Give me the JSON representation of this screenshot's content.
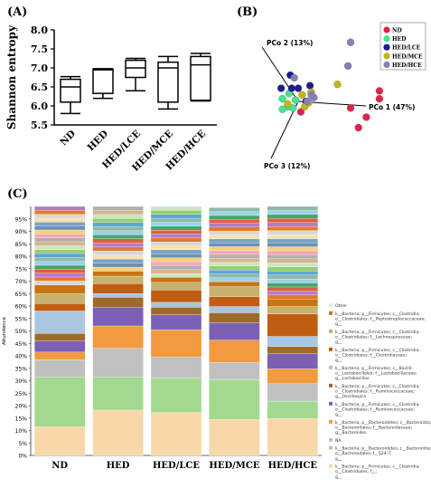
{
  "chart_data": [
    {
      "panel_label": "(A)",
      "type": "box",
      "ylabel": "Shannon entropy",
      "ylim": [
        5.5,
        8.0
      ],
      "yticks": [
        "5.5",
        "6.0",
        "6.5",
        "7.0",
        "7.5",
        "8.0"
      ],
      "categories": [
        "ND",
        "HED",
        "HED/LCE",
        "HED/MCE",
        "HED/HCE"
      ],
      "boxes": [
        {
          "min": 5.8,
          "q1": 6.1,
          "median": 6.5,
          "q3": 6.7,
          "max": 6.77
        },
        {
          "min": 6.2,
          "q1": 6.33,
          "median": 6.95,
          "q3": 6.97,
          "max": 6.98
        },
        {
          "min": 6.4,
          "q1": 6.75,
          "median": 7.0,
          "q3": 7.2,
          "max": 7.25
        },
        {
          "min": 5.92,
          "q1": 6.1,
          "median": 7.0,
          "q3": 7.15,
          "max": 7.3
        },
        {
          "min": 6.13,
          "q1": 6.15,
          "median": 7.08,
          "q3": 7.3,
          "max": 7.38
        }
      ]
    },
    {
      "panel_label": "(B)",
      "type": "scatter",
      "axes": [
        "PCo 1 (47%)",
        "PCo 2 (13%)",
        "PCo 3 (12%)"
      ],
      "legend_position": "top-right",
      "series": [
        {
          "name": "ND",
          "color": "#e0234d",
          "points": [
            [
              0.62,
              0.08
            ],
            [
              0.62,
              0.02
            ],
            [
              0.52,
              -0.12
            ],
            [
              0.4,
              -0.05
            ],
            [
              0.46,
              -0.2
            ],
            [
              0.02,
              -0.08
            ]
          ]
        },
        {
          "name": "HED",
          "color": "#43e58e",
          "points": [
            [
              -0.12,
              0.02
            ],
            [
              -0.08,
              -0.04
            ],
            [
              -0.12,
              -0.06
            ],
            [
              -0.02,
              0.01
            ],
            [
              -0.04,
              -0.05
            ],
            [
              -0.07,
              0.06
            ]
          ]
        },
        {
          "name": "HED/LCE",
          "color": "#1c1c8f",
          "points": [
            [
              -0.05,
              0.1
            ],
            [
              0.0,
              0.1
            ],
            [
              0.09,
              0.12
            ],
            [
              -0.06,
              0.2
            ],
            [
              -0.13,
              0.1
            ],
            [
              0.06,
              0.0
            ]
          ]
        },
        {
          "name": "HED/MCE",
          "color": "#c6b316",
          "points": [
            [
              0.3,
              0.13
            ],
            [
              0.05,
              -0.04
            ],
            [
              0.1,
              0.07
            ],
            [
              0.03,
              0.05
            ],
            [
              -0.08,
              -0.02
            ],
            [
              0.08,
              -0.01
            ]
          ]
        },
        {
          "name": "HED/HCE",
          "color": "#8481b6",
          "points": [
            [
              0.4,
              0.45
            ],
            [
              0.12,
              0.03
            ],
            [
              0.07,
              0.0
            ],
            [
              0.1,
              0.05
            ],
            [
              0.38,
              0.27
            ],
            [
              -0.03,
              0.18
            ]
          ]
        }
      ]
    },
    {
      "panel_label": "(C)",
      "type": "stacked_bar",
      "ylabel": "Abundance",
      "ylim": [
        0,
        100
      ],
      "yticks": [
        "0%",
        "5%",
        "10%",
        "15%",
        "20%",
        "25%",
        "30%",
        "35%",
        "40%",
        "45%",
        "50%",
        "55%",
        "60%",
        "65%",
        "70%",
        "75%",
        "80%",
        "85%",
        "90%",
        "95%"
      ],
      "categories": [
        "ND",
        "HED",
        "HED/LCE",
        "HED/MCE",
        "HED/HCE"
      ],
      "legend": [
        {
          "label": "Other",
          "color": "#e6e6e6"
        },
        {
          "label": "k__Bacteria; p__Firmicutes; c__Clostridia; o__Clostridiales; f__Peptostreptococcaceae; g__",
          "color": "#c77412"
        },
        {
          "label": "k__Bacteria; p__Firmicutes; c__Clostridia; o__Clostridiales; f__Lachnospiraceae; g__",
          "color": "#c7b16c"
        },
        {
          "label": "k__Bacteria; p__Firmicutes; c__Clostridia; o__Clostridiales; f__Clostridiaceae; g__",
          "color": "#c15d12"
        },
        {
          "label": "k__Bacteria; p__Firmicutes; c__Bacilli; o__Lactobacillales; f__Lactobacillaceae; g__Lactobacillus",
          "color": "#a9c6e3"
        },
        {
          "label": "k__Bacteria; p__Firmicutes; c__Clostridia; o__Clostridiales; f__Ruminococcaceae; g__Oscillospira",
          "color": "#9e6a2a"
        },
        {
          "label": "k__Bacteria; p__Firmicutes; c__Clostridia; o__Clostridiales; f__Ruminococcaceae; g__",
          "color": "#7b60b6"
        },
        {
          "label": "k__Bacteria; p__Bacteroidetes; c__Bacteroidia; o__Bacteroidales; f__Bacteroidaceae; g__Bacteroides",
          "color": "#f29a3e"
        },
        {
          "label": "NA",
          "color": "#c0c0c0"
        },
        {
          "label": "k__Bacteria; p__Bacteroidetes; c__Bacteroidia; o__Bacteroidales; f__S24-7; g__",
          "color": "#a3d98e"
        },
        {
          "label": "k__Bacteria; p__Firmicutes; c__Clostridia; o__Clostridiales; f__; g__",
          "color": "#f8d7a8"
        }
      ],
      "extra_colors": [
        "#d8d8d8",
        "#8fb8a8",
        "#f4a9b3",
        "#e47a2c",
        "#5aa7d6",
        "#f1d27a",
        "#b37cc6",
        "#9acd6d",
        "#6f8fb8",
        "#e15f3e",
        "#c8e6c8",
        "#7aa3c4",
        "#4aa36a",
        "#d9b38c",
        "#f5e3b0",
        "#9ad3e8",
        "#b0b0b0"
      ],
      "series": [
        {
          "name": "k__Bacteria; p__Firmicutes; c__Clostridia; o__Clostridiales; f__; g__",
          "values": [
            11.5,
            18.2,
            17.2,
            14.5,
            14.8
          ]
        },
        {
          "name": "k__Bacteria; p__Bacteroidetes; c__Bacteroidia; o__Bacteroidales; f__S24-7; g__",
          "values": [
            20.0,
            13.3,
            14.0,
            16.0,
            7.0
          ]
        },
        {
          "name": "NA",
          "values": [
            7.0,
            11.5,
            8.3,
            6.8,
            7.0
          ]
        },
        {
          "name": "k__Bacteria; p__Bacteroidetes; c__Bacteroidia; o__Bacteroidales; f__Bacteroidaceae; g__Bacteroides",
          "values": [
            3.0,
            9.0,
            11.0,
            9.0,
            6.0
          ]
        },
        {
          "name": "k__Bacteria; p__Firmicutes; c__Clostridia; o__Clostridiales; f__Ruminococcaceae; g__",
          "values": [
            4.5,
            7.5,
            6.0,
            7.0,
            6.0
          ]
        },
        {
          "name": "k__Bacteria; p__Firmicutes; c__Clostridia; o__Clostridiales; f__Ruminococcaceae; g__Oscillospira",
          "values": [
            3.0,
            4.0,
            3.0,
            4.0,
            3.0
          ]
        },
        {
          "name": "k__Bacteria; p__Firmicutes; c__Bacilli; o__Lactobacillales; f__Lactobacillaceae; g__Lactobacillus",
          "values": [
            9.0,
            1.5,
            2.0,
            2.5,
            4.0
          ]
        },
        {
          "name": "k__Bacteria; p__Firmicutes; c__Clostridia; o__Clostridiales; f__Clostridiaceae; g__",
          "values": [
            3.0,
            4.0,
            5.0,
            4.0,
            9.0
          ]
        },
        {
          "name": "k__Bacteria; p__Firmicutes; c__Clostridia; o__Clostridiales; f__Lachnospiraceae; g__",
          "values": [
            4.0,
            3.0,
            3.0,
            4.0,
            3.0
          ]
        },
        {
          "name": "k__Bacteria; p__Firmicutes; c__Clostridia; o__Clostridiales; f__Peptostreptococcaceae; g__",
          "values": [
            3.5,
            2.0,
            2.0,
            2.0,
            3.0
          ]
        },
        {
          "name": "rest",
          "values": [
            31.5,
            26.0,
            28.5,
            29.7,
            37.2
          ]
        }
      ]
    }
  ]
}
